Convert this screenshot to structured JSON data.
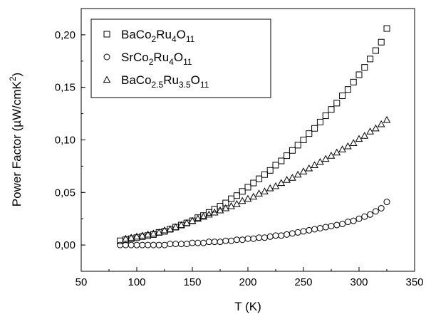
{
  "chart_data": {
    "type": "scatter",
    "title": "",
    "xlabel": "T (K)",
    "ylabel": "Power Factor (µW/cmK²)",
    "ylabel_main": "Power Factor (µW/cmK",
    "ylabel_sup": "2",
    "ylabel_close": ")",
    "xlim": [
      50,
      350
    ],
    "ylim": [
      -0.025,
      0.225
    ],
    "x_ticks": [
      50,
      100,
      150,
      200,
      250,
      300,
      350
    ],
    "x_tick_labels": [
      "50",
      "100",
      "150",
      "200",
      "250",
      "300",
      "350"
    ],
    "y_ticks": [
      0.0,
      0.05,
      0.1,
      0.15,
      0.2
    ],
    "y_tick_labels": [
      "0,00",
      "0,05",
      "0,10",
      "0,15",
      "0,20"
    ],
    "grid": false,
    "legend_position": "top-left",
    "series": [
      {
        "name": "BaCo2Ru4O11",
        "name_parts": [
          [
            "BaCo",
            ""
          ],
          [
            "2",
            "sub"
          ],
          [
            "Ru",
            ""
          ],
          [
            "4",
            "sub"
          ],
          [
            "O",
            ""
          ],
          [
            "11",
            "sub"
          ]
        ],
        "marker": "square",
        "x": [
          85,
          90,
          95,
          100,
          105,
          110,
          115,
          120,
          125,
          130,
          135,
          140,
          145,
          150,
          155,
          160,
          165,
          170,
          175,
          180,
          185,
          190,
          195,
          200,
          205,
          210,
          215,
          220,
          225,
          230,
          235,
          240,
          245,
          250,
          255,
          260,
          265,
          270,
          275,
          280,
          285,
          290,
          295,
          300,
          305,
          310,
          315,
          320,
          325
        ],
        "y": [
          0.004,
          0.005,
          0.006,
          0.007,
          0.008,
          0.009,
          0.01,
          0.012,
          0.013,
          0.015,
          0.017,
          0.019,
          0.021,
          0.023,
          0.026,
          0.028,
          0.031,
          0.034,
          0.037,
          0.04,
          0.044,
          0.047,
          0.051,
          0.055,
          0.059,
          0.063,
          0.067,
          0.071,
          0.076,
          0.08,
          0.085,
          0.09,
          0.095,
          0.1,
          0.106,
          0.111,
          0.117,
          0.123,
          0.129,
          0.135,
          0.142,
          0.148,
          0.155,
          0.162,
          0.169,
          0.177,
          0.185,
          0.193,
          0.206
        ]
      },
      {
        "name": "SrCo2Ru4O11",
        "name_parts": [
          [
            "SrCo",
            ""
          ],
          [
            "2",
            "sub"
          ],
          [
            "Ru",
            ""
          ],
          [
            "4",
            "sub"
          ],
          [
            "O",
            ""
          ],
          [
            "11",
            "sub"
          ]
        ],
        "marker": "circle",
        "x": [
          85,
          90,
          95,
          100,
          105,
          110,
          115,
          120,
          125,
          130,
          135,
          140,
          145,
          150,
          155,
          160,
          165,
          170,
          175,
          180,
          185,
          190,
          195,
          200,
          205,
          210,
          215,
          220,
          225,
          230,
          235,
          240,
          245,
          250,
          255,
          260,
          265,
          270,
          275,
          280,
          285,
          290,
          295,
          300,
          305,
          310,
          315,
          320,
          325
        ],
        "y": [
          0.0,
          0.0,
          0.0,
          0.0,
          0.0,
          0.0,
          0.0,
          0.0,
          0.0,
          0.001,
          0.001,
          0.001,
          0.001,
          0.002,
          0.002,
          0.002,
          0.003,
          0.003,
          0.003,
          0.004,
          0.004,
          0.005,
          0.005,
          0.006,
          0.006,
          0.007,
          0.007,
          0.008,
          0.009,
          0.009,
          0.01,
          0.011,
          0.012,
          0.013,
          0.014,
          0.015,
          0.016,
          0.017,
          0.018,
          0.019,
          0.02,
          0.022,
          0.023,
          0.025,
          0.027,
          0.029,
          0.032,
          0.035,
          0.041
        ]
      },
      {
        "name": "BaCo2.5Ru3.5O11",
        "name_parts": [
          [
            "BaCo",
            ""
          ],
          [
            "2.5",
            "sub"
          ],
          [
            "Ru",
            ""
          ],
          [
            "3.5",
            "sub"
          ],
          [
            "O",
            ""
          ],
          [
            "11",
            "sub"
          ]
        ],
        "marker": "triangle",
        "x": [
          90,
          95,
          100,
          105,
          110,
          115,
          120,
          125,
          130,
          135,
          140,
          145,
          150,
          155,
          160,
          165,
          170,
          175,
          180,
          185,
          190,
          195,
          200,
          205,
          210,
          215,
          220,
          225,
          230,
          235,
          240,
          245,
          250,
          255,
          260,
          265,
          270,
          275,
          280,
          285,
          290,
          295,
          300,
          305,
          310,
          315,
          320,
          325
        ],
        "y": [
          0.006,
          0.007,
          0.008,
          0.009,
          0.01,
          0.011,
          0.012,
          0.014,
          0.015,
          0.017,
          0.019,
          0.021,
          0.023,
          0.025,
          0.027,
          0.029,
          0.031,
          0.033,
          0.035,
          0.037,
          0.039,
          0.042,
          0.044,
          0.046,
          0.049,
          0.051,
          0.054,
          0.056,
          0.059,
          0.062,
          0.064,
          0.067,
          0.07,
          0.073,
          0.076,
          0.079,
          0.082,
          0.085,
          0.088,
          0.091,
          0.094,
          0.097,
          0.101,
          0.104,
          0.108,
          0.111,
          0.115,
          0.119
        ]
      }
    ]
  }
}
